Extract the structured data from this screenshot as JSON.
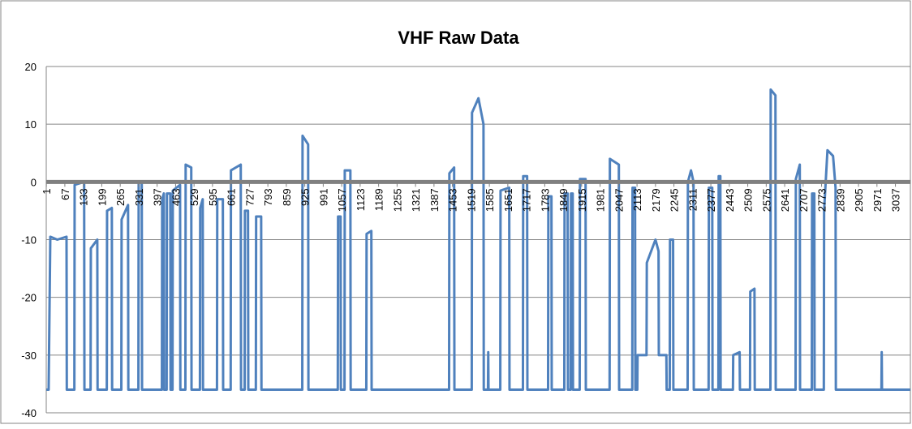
{
  "chart_data": {
    "type": "line",
    "title": "VHF Raw Data",
    "color": "#4f81bd",
    "x": [
      1,
      9,
      15,
      40,
      73,
      74,
      101,
      102,
      136,
      137,
      159,
      160,
      183,
      184,
      217,
      218,
      235,
      236,
      269,
      270,
      293,
      294,
      330,
      331,
      342,
      343,
      414,
      415,
      421,
      422,
      431,
      432,
      444,
      445,
      452,
      453,
      479,
      480,
      498,
      499,
      519,
      520,
      550,
      551,
      560,
      561,
      611,
      612,
      632,
      633,
      660,
      661,
      696,
      697,
      710,
      711,
      722,
      723,
      750,
      751,
      769,
      770,
      916,
      917,
      937,
      938,
      1043,
      1044,
      1053,
      1054,
      1067,
      1068,
      1088,
      1089,
      1145,
      1146,
      1163,
      1164,
      1441,
      1442,
      1459,
      1460,
      1522,
      1523,
      1546,
      1564,
      1565,
      1580,
      1581,
      1582,
      1624,
      1625,
      1656,
      1657,
      1705,
      1706,
      1720,
      1721,
      1795,
      1796,
      1807,
      1808,
      1853,
      1854,
      1865,
      1866,
      1876,
      1877,
      1883,
      1884,
      1908,
      1909,
      1929,
      1930,
      2015,
      2016,
      2048,
      2049,
      2096,
      2097,
      2106,
      2107,
      2114,
      2115,
      2147,
      2148,
      2179,
      2190,
      2191,
      2218,
      2219,
      2230,
      2231,
      2242,
      2243,
      2294,
      2295,
      2306,
      2315,
      2316,
      2369,
      2370,
      2382,
      2383,
      2404,
      2405,
      2411,
      2412,
      2456,
      2457,
      2480,
      2481,
      2517,
      2518,
      2533,
      2534,
      2590,
      2591,
      2608,
      2609,
      2680,
      2681,
      2695,
      2696,
      2738,
      2739,
      2747,
      2748,
      2781,
      2782,
      2794,
      2814,
      2823,
      2824,
      2987,
      2988,
      2989,
      3090
    ],
    "values": [
      -36,
      -36,
      -9.5,
      -10,
      -9.5,
      -36,
      -36,
      -0.5,
      0,
      -36,
      -36,
      -11.5,
      -10,
      -36,
      -36,
      -5,
      -4.5,
      -36,
      -36,
      -6.5,
      -4,
      -36,
      -36,
      0,
      0,
      -36,
      -36,
      -3,
      -2,
      -36,
      -36,
      -2,
      -2,
      -36,
      -36,
      -1.5,
      -0.5,
      -36,
      -36,
      3,
      2.5,
      -36,
      -36,
      -4.5,
      -3,
      -36,
      -36,
      -3,
      -3,
      -36,
      -36,
      2,
      3,
      -36,
      -36,
      -5,
      -5,
      -36,
      -36,
      -6,
      -6,
      -36,
      -36,
      8,
      6.5,
      -36,
      -36,
      -6,
      -6,
      -36,
      -36,
      2,
      2,
      -36,
      -36,
      -9,
      -8.5,
      -36,
      -36,
      1.5,
      2.5,
      -36,
      -36,
      12,
      14.5,
      10,
      -36,
      -36,
      -29.5,
      -36,
      -36,
      -1.5,
      -1,
      -36,
      -36,
      1,
      1,
      -36,
      -36,
      -2.5,
      -2.5,
      -36,
      -36,
      -2,
      -2,
      -36,
      -36,
      -2,
      -2,
      -36,
      -36,
      0.5,
      0.5,
      -36,
      -36,
      4,
      3,
      -36,
      -36,
      -1,
      -1,
      -36,
      -36,
      -30,
      -30,
      -14,
      -10,
      -12,
      -30,
      -30,
      -36,
      -36,
      -10,
      -10,
      -36,
      -36,
      0,
      2,
      0,
      -36,
      -36,
      -1,
      -1,
      -36,
      -36,
      1,
      1,
      -36,
      -36,
      -30,
      -29.5,
      -36,
      -36,
      -19,
      -18.5,
      -36,
      -36,
      16,
      15,
      -36,
      -36,
      0.5,
      3,
      -36,
      -36,
      -2,
      -2,
      -36,
      -36,
      -5,
      5.5,
      4.5,
      -1,
      -36,
      -36,
      -29.5,
      -36,
      -36
    ],
    "xlim": [
      0.5,
      3090.5
    ],
    "xticks": [
      1,
      67,
      133,
      199,
      265,
      331,
      397,
      463,
      529,
      595,
      661,
      727,
      793,
      859,
      925,
      991,
      1057,
      1123,
      1189,
      1255,
      1321,
      1387,
      1453,
      1519,
      1585,
      1651,
      1717,
      1783,
      1849,
      1915,
      1981,
      2047,
      2113,
      2179,
      2245,
      2311,
      2377,
      2443,
      2509,
      2575,
      2641,
      2707,
      2773,
      2839,
      2905,
      2971,
      3037
    ],
    "ylim": [
      -40,
      20
    ],
    "yticks": [
      -40,
      -30,
      -20,
      -10,
      0,
      10,
      20
    ],
    "grid": true
  }
}
